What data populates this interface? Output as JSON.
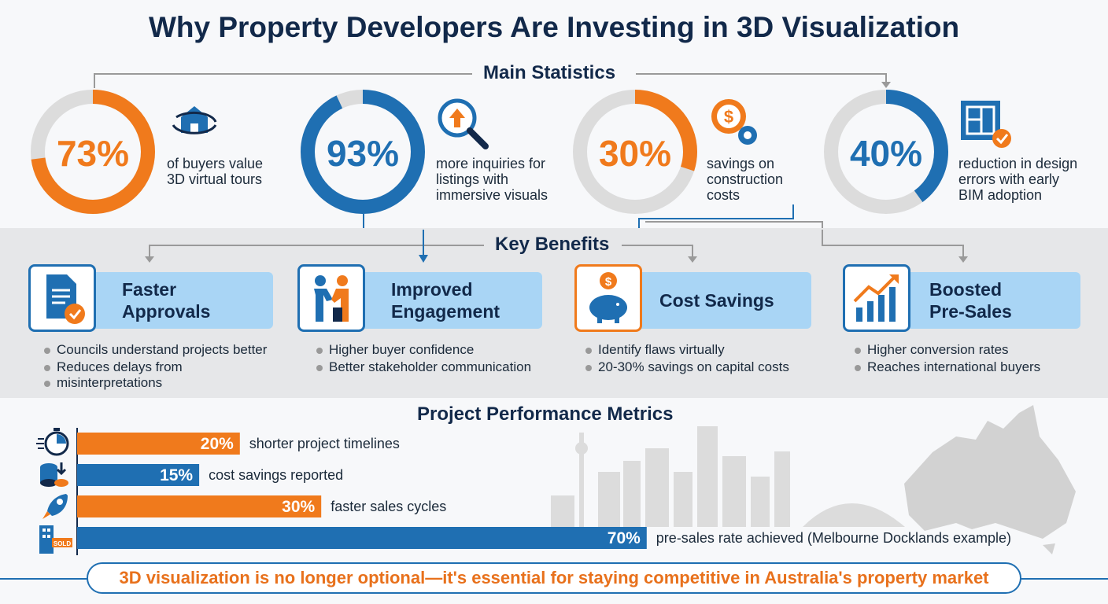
{
  "title": "Why Property Developers Are Investing in 3D Visualization",
  "sections": {
    "stats": "Main Statistics",
    "benefits": "Key Benefits",
    "metrics": "Project Performance Metrics"
  },
  "colors": {
    "orange": "#f07a1c",
    "blue": "#1f6fb2",
    "navy": "#12294a",
    "ring_bg": "#dcdcdc"
  },
  "stats": [
    {
      "value": "73%",
      "percent": 73,
      "color": "orange",
      "text": [
        "of buyers value",
        "3D virtual tours"
      ],
      "icon": "home-360-icon"
    },
    {
      "value": "93%",
      "percent": 93,
      "color": "blue",
      "text": [
        "more inquiries for",
        "listings with",
        "immersive visuals"
      ],
      "icon": "magnifier-arrow-icon"
    },
    {
      "value": "30%",
      "percent": 30,
      "color": "orange",
      "text": [
        "savings on",
        "construction",
        "costs"
      ],
      "icon": "dollar-gear-icon"
    },
    {
      "value": "40%",
      "percent": 40,
      "color": "blue",
      "text": [
        "reduction in design",
        "errors with early",
        "BIM adoption"
      ],
      "icon": "blueprint-check-icon"
    }
  ],
  "benefits": [
    {
      "title": [
        "Faster",
        "Approvals"
      ],
      "icon": "document-check-icon",
      "bullets": [
        "Councils understand projects better",
        "Reduces delays from",
        "misinterpretations"
      ]
    },
    {
      "title": [
        "Improved",
        "Engagement"
      ],
      "icon": "handshake-icon",
      "bullets": [
        "Higher buyer confidence",
        "Better stakeholder communication"
      ]
    },
    {
      "title": [
        "Cost Savings"
      ],
      "icon": "piggy-bank-icon",
      "bullets": [
        "Identify flaws virtually",
        "20-30% savings on capital costs"
      ]
    },
    {
      "title": [
        "Boosted",
        "Pre-Sales"
      ],
      "icon": "growth-chart-icon",
      "bullets": [
        "Higher conversion rates",
        "Reaches international buyers"
      ]
    }
  ],
  "chart_data": {
    "type": "bar",
    "orientation": "horizontal",
    "title": "Project Performance Metrics",
    "categories": [
      "shorter project timelines",
      "cost savings reported",
      "faster sales cycles",
      "pre-sales rate achieved (Melbourne Docklands example)"
    ],
    "values": [
      20,
      15,
      30,
      70
    ],
    "value_labels": [
      "20%",
      "15%",
      "30%",
      "70%"
    ],
    "bar_colors": [
      "#f07a1c",
      "#1f6fb2",
      "#f07a1c",
      "#1f6fb2"
    ],
    "icons": [
      "stopwatch-icon",
      "coins-icon",
      "rocket-icon",
      "sold-building-icon"
    ],
    "xlim": [
      0,
      100
    ]
  },
  "footer": "3D visualization is no longer optional—it's essential for staying competitive in Australia's property market"
}
